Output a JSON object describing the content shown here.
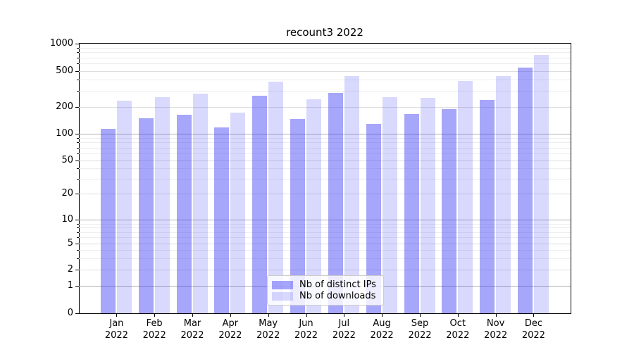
{
  "title": "recount3 2022",
  "chart_data": {
    "type": "bar",
    "title": "recount3 2022",
    "categories": [
      "Jan 2022",
      "Feb 2022",
      "Mar 2022",
      "Apr 2022",
      "May 2022",
      "Jun 2022",
      "Jul 2022",
      "Aug 2022",
      "Sep 2022",
      "Oct 2022",
      "Nov 2022",
      "Dec 2022"
    ],
    "category_months": [
      "Jan",
      "Feb",
      "Mar",
      "Apr",
      "May",
      "Jun",
      "Jul",
      "Aug",
      "Sep",
      "Oct",
      "Nov",
      "Dec"
    ],
    "category_year": "2022",
    "series": [
      {
        "name": "Nb of distinct IPs",
        "color": "rgba(66,66,244,0.47)",
        "values": [
          114,
          150,
          163,
          118,
          268,
          148,
          287,
          129,
          166,
          191,
          239,
          540
        ]
      },
      {
        "name": "Nb of downloads",
        "color": "rgba(66,66,244,0.20)",
        "values": [
          235,
          258,
          281,
          172,
          377,
          245,
          438,
          258,
          254,
          385,
          440,
          750
        ]
      }
    ],
    "y_axis": {
      "scale": "symlog-like",
      "ylim": [
        0,
        1000
      ],
      "ticks": [
        0,
        1,
        2,
        5,
        10,
        20,
        50,
        100,
        200,
        500,
        1000
      ],
      "tick_labels": [
        "0",
        "1",
        "2",
        "5",
        "10",
        "20",
        "50",
        "100",
        "200",
        "500",
        "1000"
      ],
      "minor_gridlines": [
        3,
        4,
        6,
        7,
        8,
        9,
        30,
        40,
        60,
        70,
        80,
        90,
        300,
        400,
        600,
        700,
        800,
        900
      ]
    },
    "grid": "both",
    "legend_position": "lower center"
  },
  "legend": {
    "items": [
      {
        "label": "Nb of distinct IPs"
      },
      {
        "label": "Nb of downloads"
      }
    ]
  },
  "colors": {
    "bar_dark": "rgba(66,66,244,0.47)",
    "bar_light": "rgba(66,66,244,0.20)",
    "grid_major": "#b0b0b0",
    "grid_mid": "#dedede",
    "grid_minor": "#ededed",
    "spine": "#000000",
    "legend_border": "#cccccc"
  }
}
